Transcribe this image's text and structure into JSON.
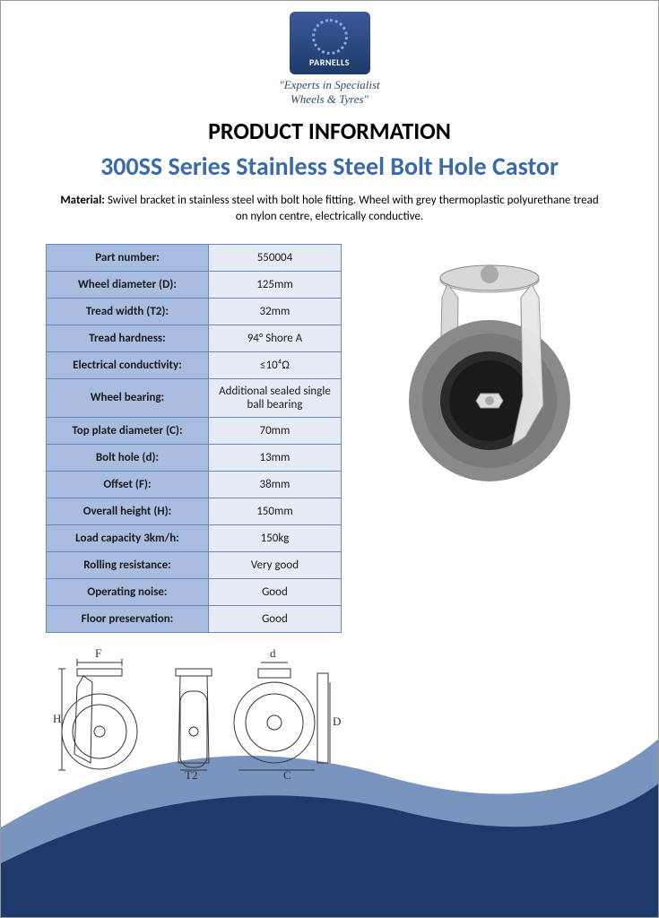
{
  "brand": {
    "name": "PARNELLS",
    "tagline_line1": "\"Experts in Specialist",
    "tagline_line2": "Wheels & Tyres\""
  },
  "header": {
    "supertitle": "PRODUCT INFORMATION",
    "title": "300SS Series Stainless Steel Bolt Hole Castor"
  },
  "material": {
    "label": "Material:",
    "text": "Swivel bracket in stainless steel with bolt hole fitting. Wheel with grey thermoplastic polyurethane tread on nylon centre, electrically conductive."
  },
  "specs": [
    {
      "label": "Part number:",
      "value": "550004"
    },
    {
      "label": "Wheel diameter (D):",
      "value": "125mm"
    },
    {
      "label": "Tread width (T2):",
      "value": "32mm"
    },
    {
      "label": "Tread hardness:",
      "value": "94° Shore A"
    },
    {
      "label": "Electrical conductivity:",
      "value": "≤10⁴Ω"
    },
    {
      "label": "Wheel bearing:",
      "value": "Additional sealed single ball bearing"
    },
    {
      "label": "Top plate diameter (C):",
      "value": "70mm"
    },
    {
      "label": "Bolt hole (d):",
      "value": "13mm"
    },
    {
      "label": "Offset (F):",
      "value": "38mm"
    },
    {
      "label": "Overall height (H):",
      "value": "150mm"
    },
    {
      "label": "Load capacity 3km/h:",
      "value": "150kg"
    },
    {
      "label": "Rolling resistance:",
      "value": "Very good"
    },
    {
      "label": "Operating noise:",
      "value": "Good"
    },
    {
      "label": "Floor preservation:",
      "value": "Good"
    }
  ],
  "diagram": {
    "labels": {
      "F": "F",
      "H": "H",
      "T2": "T2",
      "D": "D",
      "C": "C",
      "d": "d"
    }
  },
  "colors": {
    "brand_blue": "#3a6aa8",
    "table_header_bg": "#a8bde0",
    "table_cell_bg": "#e6ecf5",
    "table_border": "#6a88b8",
    "curve_outer": "#1e3a6a",
    "curve_inner": "#7a94c0",
    "wheel_tread": "#8a8a8a",
    "wheel_hub": "#2a2a2a",
    "bracket": "#d8d8d8"
  }
}
